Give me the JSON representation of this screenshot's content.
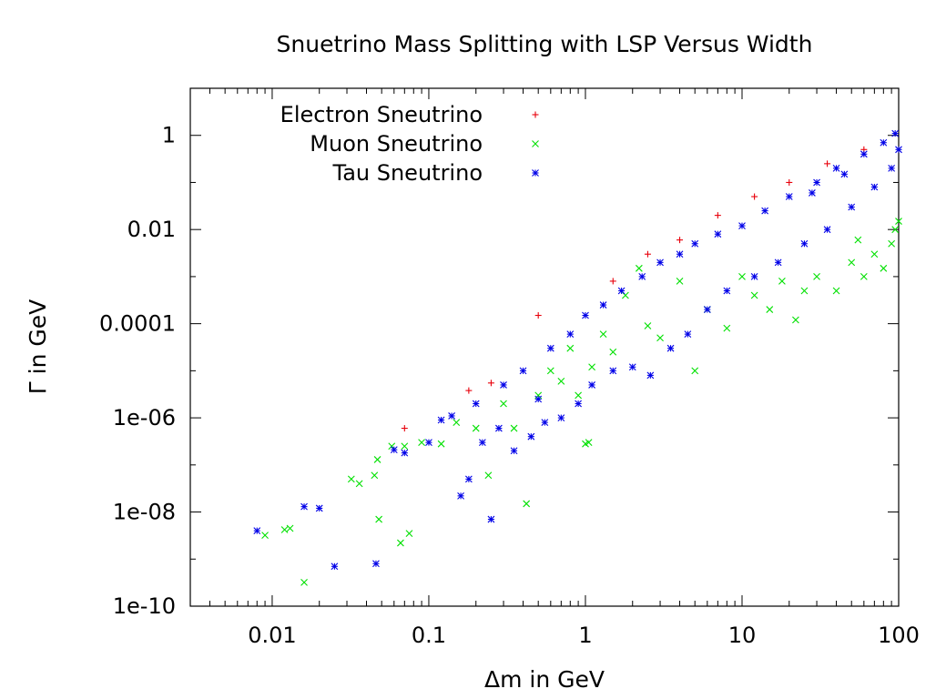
{
  "chart_data": {
    "type": "scatter",
    "title": "Snuetrino Mass Splitting with LSP Versus Width",
    "xlabel": "Δm in GeV",
    "ylabel": "Γ in GeV",
    "x_scale": "log",
    "y_scale": "log",
    "xlim": [
      0.003,
      100
    ],
    "ylim": [
      1e-10,
      10
    ],
    "x_ticks": [
      {
        "value": 0.01,
        "label": "0.01"
      },
      {
        "value": 0.1,
        "label": "0.1"
      },
      {
        "value": 1,
        "label": "1"
      },
      {
        "value": 10,
        "label": "10"
      },
      {
        "value": 100,
        "label": "100"
      }
    ],
    "y_ticks": [
      {
        "value": 1e-10,
        "label": "1e-10"
      },
      {
        "value": 1e-08,
        "label": "1e-08"
      },
      {
        "value": 1e-06,
        "label": "1e-06"
      },
      {
        "value": 0.0001,
        "label": "0.0001"
      },
      {
        "value": 0.01,
        "label": "0.01"
      },
      {
        "value": 1,
        "label": "1"
      }
    ],
    "grid": false,
    "legend_position": "top-left",
    "series": [
      {
        "name": "Electron Sneutrino",
        "marker": "+",
        "color": "#e8000b",
        "points": [
          [
            0.07,
            6e-07
          ],
          [
            0.18,
            3.8e-06
          ],
          [
            0.25,
            5.5e-06
          ],
          [
            0.5,
            0.00015
          ],
          [
            1.5,
            0.0008
          ],
          [
            2.5,
            0.003
          ],
          [
            4,
            0.006
          ],
          [
            7,
            0.02
          ],
          [
            12,
            0.05
          ],
          [
            20,
            0.1
          ],
          [
            35,
            0.25
          ],
          [
            60,
            0.5
          ]
        ]
      },
      {
        "name": "Muon Sneutrino",
        "marker": "x",
        "color": "#00e000",
        "points": [
          [
            0.009,
            3.2e-09
          ],
          [
            0.012,
            4.2e-09
          ],
          [
            0.013,
            4.5e-09
          ],
          [
            0.016,
            3.2e-10
          ],
          [
            0.032,
            5e-08
          ],
          [
            0.036,
            4e-08
          ],
          [
            0.045,
            6e-08
          ],
          [
            0.047,
            1.3e-07
          ],
          [
            0.048,
            7e-09
          ],
          [
            0.058,
            2.5e-07
          ],
          [
            0.066,
            2.2e-09
          ],
          [
            0.07,
            2.5e-07
          ],
          [
            0.075,
            3.5e-09
          ],
          [
            0.09,
            3e-07
          ],
          [
            0.12,
            2.8e-07
          ],
          [
            0.15,
            8e-07
          ],
          [
            0.2,
            6e-07
          ],
          [
            0.24,
            6e-08
          ],
          [
            0.3,
            2e-06
          ],
          [
            0.35,
            6e-07
          ],
          [
            0.42,
            1.5e-08
          ],
          [
            0.5,
            3e-06
          ],
          [
            0.6,
            1e-05
          ],
          [
            0.7,
            6e-06
          ],
          [
            0.8,
            3e-05
          ],
          [
            0.9,
            3e-06
          ],
          [
            1.0,
            2.8e-07
          ],
          [
            1.05,
            3e-07
          ],
          [
            1.1,
            1.2e-05
          ],
          [
            1.3,
            6e-05
          ],
          [
            1.5,
            2.5e-05
          ],
          [
            1.8,
            0.0004
          ],
          [
            2.2,
            0.0015
          ],
          [
            2.5,
            9e-05
          ],
          [
            3,
            5e-05
          ],
          [
            4,
            0.0008
          ],
          [
            5,
            1e-05
          ],
          [
            6,
            0.0002
          ],
          [
            8,
            8e-05
          ],
          [
            10,
            0.001
          ],
          [
            12,
            0.0004
          ],
          [
            15,
            0.0002
          ],
          [
            18,
            0.0008
          ],
          [
            22,
            0.00012
          ],
          [
            25,
            0.0005
          ],
          [
            30,
            0.001
          ],
          [
            40,
            0.0005
          ],
          [
            50,
            0.002
          ],
          [
            60,
            0.001
          ],
          [
            70,
            0.003
          ],
          [
            80,
            0.0015
          ],
          [
            90,
            0.005
          ],
          [
            95,
            0.01
          ],
          [
            100,
            0.015
          ],
          [
            55,
            0.006
          ]
        ]
      },
      {
        "name": "Tau Sneutrino",
        "marker": "*",
        "color": "#0000e8",
        "points": [
          [
            0.008,
            4e-09
          ],
          [
            0.016,
            1.3e-08
          ],
          [
            0.02,
            1.2e-08
          ],
          [
            0.025,
            7e-10
          ],
          [
            0.046,
            8e-10
          ],
          [
            0.06,
            2.1e-07
          ],
          [
            0.07,
            1.8e-07
          ],
          [
            0.1,
            3e-07
          ],
          [
            0.12,
            9e-07
          ],
          [
            0.14,
            1.1e-06
          ],
          [
            0.16,
            2.2e-08
          ],
          [
            0.18,
            5e-08
          ],
          [
            0.2,
            2e-06
          ],
          [
            0.22,
            3e-07
          ],
          [
            0.25,
            7e-09
          ],
          [
            0.28,
            6e-07
          ],
          [
            0.3,
            5e-06
          ],
          [
            0.35,
            2e-07
          ],
          [
            0.4,
            1e-05
          ],
          [
            0.45,
            4e-07
          ],
          [
            0.5,
            2.5e-06
          ],
          [
            0.55,
            8e-07
          ],
          [
            0.6,
            3e-05
          ],
          [
            0.7,
            1e-06
          ],
          [
            0.8,
            6e-05
          ],
          [
            0.9,
            2e-06
          ],
          [
            1.0,
            0.00015
          ],
          [
            1.1,
            5e-06
          ],
          [
            1.3,
            0.00025
          ],
          [
            1.5,
            1e-05
          ],
          [
            1.7,
            0.0005
          ],
          [
            2.0,
            1.2e-05
          ],
          [
            2.3,
            0.001
          ],
          [
            2.6,
            8e-06
          ],
          [
            3.0,
            0.002
          ],
          [
            3.5,
            3e-05
          ],
          [
            4.0,
            0.003
          ],
          [
            4.5,
            6e-05
          ],
          [
            5.0,
            0.005
          ],
          [
            6.0,
            0.0002
          ],
          [
            7.0,
            0.008
          ],
          [
            8.0,
            0.0005
          ],
          [
            10,
            0.012
          ],
          [
            12,
            0.001
          ],
          [
            14,
            0.025
          ],
          [
            17,
            0.002
          ],
          [
            20,
            0.05
          ],
          [
            25,
            0.005
          ],
          [
            30,
            0.1
          ],
          [
            35,
            0.01
          ],
          [
            40,
            0.2
          ],
          [
            50,
            0.03
          ],
          [
            60,
            0.4
          ],
          [
            70,
            0.08
          ],
          [
            80,
            0.7
          ],
          [
            90,
            0.2
          ],
          [
            95,
            1.1
          ],
          [
            100,
            0.5
          ],
          [
            45,
            0.15
          ],
          [
            28,
            0.06
          ]
        ]
      }
    ]
  }
}
